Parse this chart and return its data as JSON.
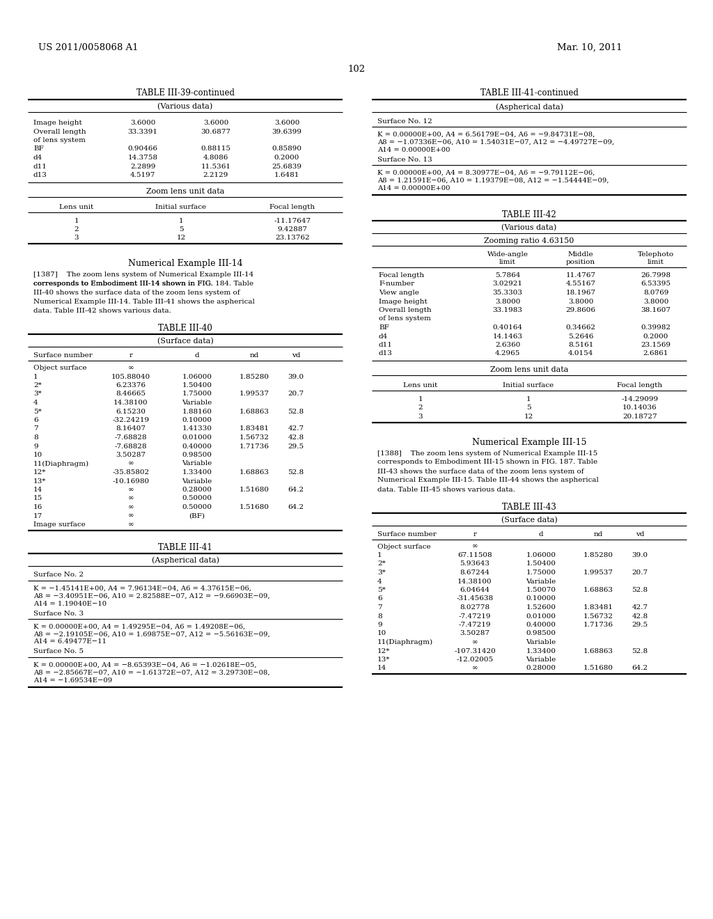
{
  "page_number": "102",
  "patent_number": "US 2011/0058068 A1",
  "patent_date": "Mar. 10, 2011",
  "table_39_continued": {
    "title": "TABLE III-39-continued",
    "subtitle": "(Various data)",
    "various_rows": [
      [
        "Image height",
        "3.6000",
        "3.6000",
        "3.6000"
      ],
      [
        "Overall length",
        "33.3391",
        "30.6877",
        "39.6399"
      ],
      [
        "of lens system",
        "",
        "",
        ""
      ],
      [
        "BF",
        "0.90466",
        "0.88115",
        "0.85890"
      ],
      [
        "d4",
        "14.3758",
        "4.8086",
        "0.2000"
      ],
      [
        "d11",
        "2.2899",
        "11.5361",
        "25.6839"
      ],
      [
        "d13",
        "4.5197",
        "2.2129",
        "1.6481"
      ]
    ],
    "zoom_subtitle": "Zoom lens unit data",
    "zoom_headers": [
      "Lens unit",
      "Initial surface",
      "Focal length"
    ],
    "zoom_rows": [
      [
        "1",
        "1",
        "-11.17647"
      ],
      [
        "2",
        "5",
        "9.42887"
      ],
      [
        "3",
        "12",
        "23.13762"
      ]
    ]
  },
  "numerical_example_14_title": "Numerical Example III-14",
  "numerical_example_14_lines": [
    "[1387]    The zoom lens system of Numerical Example III-14",
    "corresponds to Embodiment III-14 shown in FIG. 184. Table",
    "III-40 shows the surface data of the zoom lens system of",
    "Numerical Example III-14. Table III-41 shows the aspherical",
    "data. Table III-42 shows various data."
  ],
  "table_40": {
    "title": "TABLE III-40",
    "subtitle": "(Surface data)",
    "headers": [
      "Surface number",
      "r",
      "d",
      "nd",
      "vd"
    ],
    "rows": [
      [
        "Object surface",
        "∞",
        "",
        "",
        ""
      ],
      [
        "1",
        "105.88040",
        "1.06000",
        "1.85280",
        "39.0"
      ],
      [
        "2*",
        "6.23376",
        "1.50400",
        "",
        ""
      ],
      [
        "3*",
        "8.46665",
        "1.75000",
        "1.99537",
        "20.7"
      ],
      [
        "4",
        "14.38100",
        "Variable",
        "",
        ""
      ],
      [
        "5*",
        "6.15230",
        "1.88160",
        "1.68863",
        "52.8"
      ],
      [
        "6",
        "-32.24219",
        "0.10000",
        "",
        ""
      ],
      [
        "7",
        "8.16407",
        "1.41330",
        "1.83481",
        "42.7"
      ],
      [
        "8",
        "-7.68828",
        "0.01000",
        "1.56732",
        "42.8"
      ],
      [
        "9",
        "-7.68828",
        "0.40000",
        "1.71736",
        "29.5"
      ],
      [
        "10",
        "3.50287",
        "0.98500",
        "",
        ""
      ],
      [
        "11(Diaphragm)",
        "∞",
        "Variable",
        "",
        ""
      ],
      [
        "12*",
        "-35.85802",
        "1.33400",
        "1.68863",
        "52.8"
      ],
      [
        "13*",
        "-10.16980",
        "Variable",
        "",
        ""
      ],
      [
        "14",
        "∞",
        "0.28000",
        "1.51680",
        "64.2"
      ],
      [
        "15",
        "∞",
        "0.50000",
        "",
        ""
      ],
      [
        "16",
        "∞",
        "0.50000",
        "1.51680",
        "64.2"
      ],
      [
        "17",
        "∞",
        "(BF)",
        "",
        ""
      ],
      [
        "Image surface",
        "∞",
        "",
        "",
        ""
      ]
    ]
  },
  "table_41": {
    "title": "TABLE III-41",
    "subtitle": "(Aspherical data)",
    "sections": [
      {
        "header": "Surface No. 2",
        "lines": [
          "K = −1.45141E+00, A4 = 7.96134E−04, A6 = 4.37615E−06,",
          "A8 = −3.40951E−06, A10 = 2.82588E−07, A12 = −9.66903E−09,",
          "A14 = 1.19040E−10"
        ]
      },
      {
        "header": "Surface No. 3",
        "lines": [
          "K = 0.00000E+00, A4 = 1.49295E−04, A6 = 1.49208E−06,",
          "A8 = −2.19105E−06, A10 = 1.69875E−07, A12 = −5.56163E−09,",
          "A14 = 6.49477E−11"
        ]
      },
      {
        "header": "Surface No. 5",
        "lines": [
          "K = 0.00000E+00, A4 = −8.65393E−04, A6 = −1.02618E−05,",
          "A8 = −2.85667E−07, A10 = −1.61372E−07, A12 = 3.29730E−08,",
          "A14 = −1.69534E−09"
        ]
      }
    ]
  },
  "table_41_continued": {
    "title": "TABLE III-41-continued",
    "subtitle": "(Aspherical data)",
    "sections": [
      {
        "header": "Surface No. 12",
        "lines": [
          "K = 0.00000E+00, A4 = 6.56179E−04, A6 = −9.84731E−08,",
          "A8 = −1.07336E−06, A10 = 1.54031E−07, A12 = −4.49727E−09,",
          "A14 = 0.00000E+00"
        ]
      },
      {
        "header": "Surface No. 13",
        "lines": [
          "K = 0.00000E+00, A4 = 8.30977E−04, A6 = −9.79112E−06,",
          "A8 = 1.21591E−06, A10 = 1.19379E−08, A12 = −1.54444E−09,",
          "A14 = 0.00000E+00"
        ]
      }
    ]
  },
  "table_42": {
    "title": "TABLE III-42",
    "subtitle": "(Various data)",
    "zooming_ratio": "Zooming ratio 4.63150",
    "col_headers_line1": [
      "",
      "Wide-angle",
      "Middle",
      "Telephoto"
    ],
    "col_headers_line2": [
      "",
      "limit",
      "position",
      "limit"
    ],
    "rows": [
      [
        "Focal length",
        "5.7864",
        "11.4767",
        "26.7998"
      ],
      [
        "F-number",
        "3.02921",
        "4.55167",
        "6.53395"
      ],
      [
        "View angle",
        "35.3303",
        "18.1967",
        "8.0769"
      ],
      [
        "Image height",
        "3.8000",
        "3.8000",
        "3.8000"
      ],
      [
        "Overall length",
        "33.1983",
        "29.8606",
        "38.1607"
      ],
      [
        "of lens system",
        "",
        "",
        ""
      ],
      [
        "BF",
        "0.40164",
        "0.34662",
        "0.39982"
      ],
      [
        "d4",
        "14.1463",
        "5.2646",
        "0.2000"
      ],
      [
        "d11",
        "2.6360",
        "8.5161",
        "23.1569"
      ],
      [
        "d13",
        "4.2965",
        "4.0154",
        "2.6861"
      ]
    ],
    "zoom_subtitle": "Zoom lens unit data",
    "zoom_headers": [
      "Lens unit",
      "Initial surface",
      "Focal length"
    ],
    "zoom_rows": [
      [
        "1",
        "1",
        "-14.29099"
      ],
      [
        "2",
        "5",
        "10.14036"
      ],
      [
        "3",
        "12",
        "20.18727"
      ]
    ]
  },
  "numerical_example_15_title": "Numerical Example III-15",
  "numerical_example_15_lines": [
    "[1388]    The zoom lens system of Numerical Example III-15",
    "corresponds to Embodiment III-15 shown in FIG. 187. Table",
    "III-43 shows the surface data of the zoom lens system of",
    "Numerical Example III-15. Table III-44 shows the aspherical",
    "data. Table III-45 shows various data."
  ],
  "table_43": {
    "title": "TABLE III-43",
    "subtitle": "(Surface data)",
    "headers": [
      "Surface number",
      "r",
      "d",
      "nd",
      "vd"
    ],
    "rows": [
      [
        "Object surface",
        "∞",
        "",
        "",
        ""
      ],
      [
        "1",
        "67.11508",
        "1.06000",
        "1.85280",
        "39.0"
      ],
      [
        "2*",
        "5.93643",
        "1.50400",
        "",
        ""
      ],
      [
        "3*",
        "8.67244",
        "1.75000",
        "1.99537",
        "20.7"
      ],
      [
        "4",
        "14.38100",
        "Variable",
        "",
        ""
      ],
      [
        "5*",
        "6.04644",
        "1.50070",
        "1.68863",
        "52.8"
      ],
      [
        "6",
        "-31.45638",
        "0.10000",
        "",
        ""
      ],
      [
        "7",
        "8.02778",
        "1.52600",
        "1.83481",
        "42.7"
      ],
      [
        "8",
        "-7.47219",
        "0.01000",
        "1.56732",
        "42.8"
      ],
      [
        "9",
        "-7.47219",
        "0.40000",
        "1.71736",
        "29.5"
      ],
      [
        "10",
        "3.50287",
        "0.98500",
        "",
        ""
      ],
      [
        "11(Diaphragm)",
        "∞",
        "Variable",
        "",
        ""
      ],
      [
        "12*",
        "-107.31420",
        "1.33400",
        "1.68863",
        "52.8"
      ],
      [
        "13*",
        "-12.02005",
        "Variable",
        "",
        ""
      ],
      [
        "14",
        "∞",
        "0.28000",
        "1.51680",
        "64.2"
      ]
    ]
  }
}
